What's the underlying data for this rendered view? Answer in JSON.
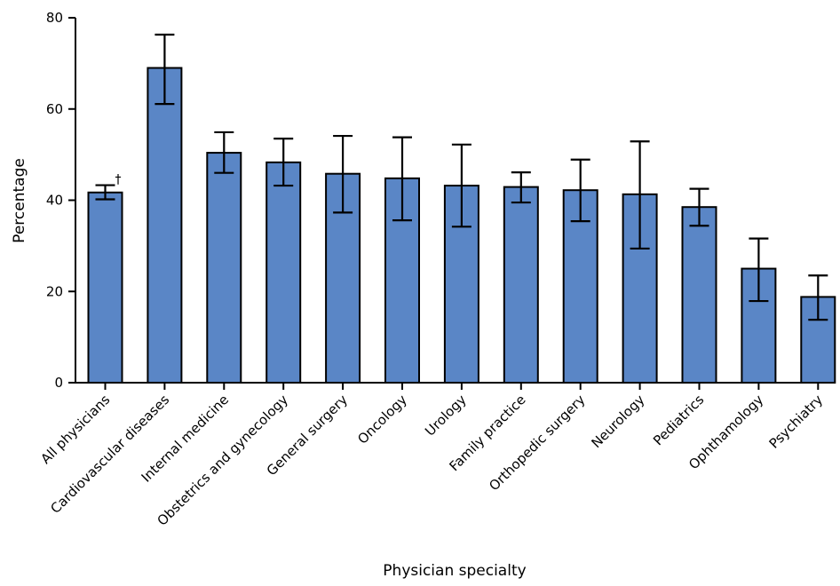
{
  "chart_data": {
    "type": "bar",
    "title": "",
    "xlabel": "Physician specialty",
    "ylabel": "Percentage",
    "ylim": [
      0,
      80
    ],
    "yticks": [
      0,
      20,
      40,
      60,
      80
    ],
    "grid": false,
    "bar_color": "#5a86c6",
    "categories": [
      "All physicians",
      "Cardiovascular diseases",
      "Internal medicine",
      "Obstetrics and gynecology",
      "General surgery",
      "Oncology",
      "Urology",
      "Family practice",
      "Orthopedic surgery",
      "Neurology",
      "Pediatrics",
      "Ophthamology",
      "Psychiatry"
    ],
    "values": [
      41.7,
      69.0,
      50.4,
      48.3,
      45.8,
      44.8,
      43.2,
      42.9,
      42.2,
      41.3,
      38.5,
      25.0,
      18.8
    ],
    "error_low": [
      40.2,
      61.1,
      46.0,
      43.2,
      37.3,
      35.6,
      34.2,
      39.5,
      35.4,
      29.4,
      34.4,
      17.9,
      13.8
    ],
    "error_high": [
      43.3,
      76.3,
      54.9,
      53.5,
      54.1,
      53.8,
      52.2,
      46.1,
      48.9,
      52.9,
      42.5,
      31.6,
      23.5
    ],
    "annotations": [
      {
        "category": "All physicians",
        "text": "†"
      }
    ]
  }
}
